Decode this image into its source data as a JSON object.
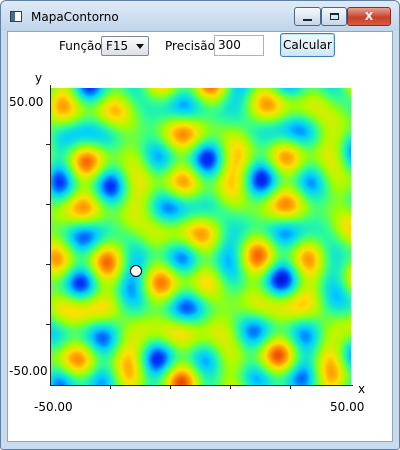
{
  "window": {
    "title": "MapaContorno",
    "controls": {
      "close_glyph": "X"
    }
  },
  "toolbar": {
    "function_label": "Função",
    "function_value": "F15",
    "precision_label": "Precisão",
    "precision_value": "300",
    "calc_label": "Calcular"
  },
  "plot": {
    "x_axis_label": "x",
    "y_axis_label": "y",
    "x_min_label": "-50.00",
    "x_max_label": "50.00",
    "y_max_label": "50.00",
    "y_min_label": "-50.00",
    "colormap": [
      "#00008f",
      "#0033ff",
      "#00d0ff",
      "#30ff90",
      "#a0ff00",
      "#ffe000",
      "#ff7a00",
      "#d01010"
    ]
  }
}
